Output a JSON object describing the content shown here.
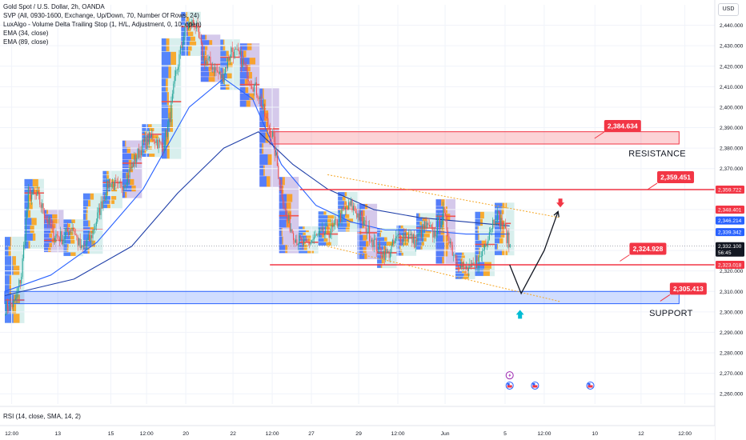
{
  "legend": {
    "title": "Gold Spot / U.S. Dollar, 2h, OANDA",
    "line1": "SVP (All, 0930-1600, Exchange, Up/Down, 70, Number Of Rows, 24)",
    "line2": "LuxAlgo - Volume Delta Trailing Stop (1, H/L, Adjustment, 0, 10, open)",
    "line3": "EMA (34, close)",
    "line4": "EMA (89, close)"
  },
  "currency": "USD",
  "rsi_label": "RSI (14, close, SMA, 14, 2)",
  "colors": {
    "up": "#26a69a",
    "down": "#ef5350",
    "ema34": "#2962ff",
    "ema89": "#1e3ea8",
    "resistance": "#f23645",
    "support": "#2962ff",
    "channel": "#f5a623",
    "svp_purple": "#b39ddb",
    "svp_teal": "#b2dfdb",
    "svp_blue": "#2962ff",
    "svp_orange": "#ff9800"
  },
  "chart_data": {
    "type": "candlestick",
    "y_axis": {
      "min": 2255,
      "max": 2450,
      "ticks": [
        "2,440.000",
        "2,430.000",
        "2,420.000",
        "2,410.000",
        "2,400.000",
        "2,390.000",
        "2,380.000",
        "2,370.000",
        "2,360.000",
        "2,350.000",
        "2,340.000",
        "2,330.000",
        "2,320.000",
        "2,310.000",
        "2,300.000",
        "2,290.000",
        "2,280.000",
        "2,270.000",
        "2,260.000"
      ]
    },
    "x_axis": {
      "labels": [
        "12:00",
        "13",
        "15",
        "12:00",
        "20",
        "22",
        "12:00",
        "27",
        "29",
        "12:00",
        "Jun",
        "5",
        "12:00",
        "10",
        "12",
        "12:00"
      ],
      "label_bars": [
        6,
        46,
        92,
        123,
        157,
        198,
        232,
        266,
        307,
        341,
        382,
        434,
        468,
        512,
        552,
        590
      ]
    },
    "last_bar": 438,
    "anchor_closes": [
      [
        0,
        2302
      ],
      [
        8,
        2304
      ],
      [
        14,
        2318
      ],
      [
        20,
        2358
      ],
      [
        28,
        2356
      ],
      [
        34,
        2348
      ],
      [
        42,
        2338
      ],
      [
        50,
        2336
      ],
      [
        58,
        2342
      ],
      [
        66,
        2330
      ],
      [
        74,
        2336
      ],
      [
        82,
        2350
      ],
      [
        90,
        2364
      ],
      [
        98,
        2360
      ],
      [
        106,
        2366
      ],
      [
        112,
        2374
      ],
      [
        120,
        2382
      ],
      [
        128,
        2386
      ],
      [
        136,
        2380
      ],
      [
        142,
        2392
      ],
      [
        148,
        2416
      ],
      [
        156,
        2438
      ],
      [
        164,
        2442
      ],
      [
        172,
        2424
      ],
      [
        180,
        2420
      ],
      [
        188,
        2414
      ],
      [
        196,
        2428
      ],
      [
        204,
        2424
      ],
      [
        212,
        2414
      ],
      [
        220,
        2406
      ],
      [
        226,
        2394
      ],
      [
        232,
        2386
      ],
      [
        238,
        2364
      ],
      [
        244,
        2346
      ],
      [
        252,
        2336
      ],
      [
        260,
        2332
      ],
      [
        268,
        2336
      ],
      [
        276,
        2338
      ],
      [
        284,
        2340
      ],
      [
        292,
        2348
      ],
      [
        300,
        2352
      ],
      [
        308,
        2346
      ],
      [
        316,
        2338
      ],
      [
        324,
        2330
      ],
      [
        332,
        2328
      ],
      [
        340,
        2336
      ],
      [
        348,
        2338
      ],
      [
        356,
        2334
      ],
      [
        364,
        2342
      ],
      [
        372,
        2338
      ],
      [
        380,
        2348
      ],
      [
        388,
        2330
      ],
      [
        396,
        2322
      ],
      [
        404,
        2320
      ],
      [
        412,
        2326
      ],
      [
        420,
        2340
      ],
      [
        426,
        2348
      ],
      [
        432,
        2342
      ],
      [
        438,
        2332
      ]
    ],
    "ema34_pts": [
      [
        0,
        2310
      ],
      [
        40,
        2318
      ],
      [
        80,
        2334
      ],
      [
        120,
        2360
      ],
      [
        160,
        2400
      ],
      [
        190,
        2414
      ],
      [
        215,
        2404
      ],
      [
        240,
        2372
      ],
      [
        270,
        2352
      ],
      [
        300,
        2344
      ],
      [
        330,
        2340
      ],
      [
        360,
        2340
      ],
      [
        400,
        2338
      ],
      [
        438,
        2338
      ]
    ],
    "ema89_pts": [
      [
        0,
        2308
      ],
      [
        60,
        2316
      ],
      [
        110,
        2332
      ],
      [
        150,
        2358
      ],
      [
        190,
        2380
      ],
      [
        220,
        2388
      ],
      [
        250,
        2372
      ],
      [
        280,
        2360
      ],
      [
        320,
        2350
      ],
      [
        360,
        2346
      ],
      [
        400,
        2344
      ],
      [
        438,
        2342
      ]
    ],
    "zones": [
      {
        "name": "resistance",
        "from_bar": 230,
        "to_bar": 585,
        "y_low": 2382,
        "y_high": 2388
      },
      {
        "name": "support",
        "from_bar": 0,
        "to_bar": 585,
        "y_low": 2304,
        "y_high": 2310
      }
    ],
    "levels": [
      {
        "name": "upper",
        "from_bar": 256,
        "y": 2359.722
      },
      {
        "name": "lower",
        "from_bar": 230,
        "y": 2323.018
      }
    ],
    "channel": {
      "upper": [
        [
          280,
          2367
        ],
        [
          482,
          2346
        ]
      ],
      "lower": [
        [
          280,
          2332
        ],
        [
          482,
          2305
        ]
      ]
    },
    "projection": [
      [
        438,
        2323
      ],
      [
        448,
        2309
      ],
      [
        468,
        2330
      ],
      [
        480,
        2349
      ]
    ],
    "arrows": [
      {
        "dir": "down",
        "bar": 482,
        "y": 2353,
        "color": "#f23645"
      },
      {
        "dir": "up",
        "bar": 447,
        "y": 2299,
        "color": "#00bcd4"
      }
    ],
    "callouts": [
      {
        "text": "2,384.634",
        "bar": 520,
        "y": 2391
      },
      {
        "text": "2,359.451",
        "bar": 566,
        "y": 2366
      },
      {
        "text": "2,324.928",
        "bar": 542,
        "y": 2331
      },
      {
        "text": "2,305.413",
        "bar": 577,
        "y": 2311.5
      }
    ],
    "zone_labels": [
      {
        "text": "RESISTANCE",
        "bar": 566,
        "y": 2376
      },
      {
        "text": "SUPPORT",
        "bar": 578,
        "y": 2298
      }
    ],
    "price_tags": [
      {
        "text": "2,359.722",
        "y": 2359.722,
        "bg": "#f23645",
        "fg": "#ffffff"
      },
      {
        "text": "2,348.401",
        "y": 2348.401,
        "bg": "#f23645",
        "fg": "#ffffff"
      },
      {
        "text": "2,346.214",
        "y": 2346.214,
        "bg": "#2962ff",
        "fg": "#ffffff"
      },
      {
        "text": "2,339.342",
        "y": 2339.342,
        "bg": "#2962ff",
        "fg": "#ffffff"
      },
      {
        "text": "2,332.100",
        "sub": "56:45",
        "y": 2332.1,
        "bg": "#131722",
        "fg": "#ffffff"
      },
      {
        "text": "2,323.018",
        "y": 2323.018,
        "bg": "#f23645",
        "fg": "#ffffff"
      }
    ],
    "events": [
      {
        "icon": "lightning-icon",
        "bar": 438,
        "y": 2269
      },
      {
        "icon": "us-flag-icon",
        "bar": 438,
        "y": 2264
      },
      {
        "icon": "us-flag-icon",
        "bar": 460,
        "y": 2264
      },
      {
        "icon": "us-flag-icon",
        "bar": 508,
        "y": 2264
      }
    ]
  }
}
